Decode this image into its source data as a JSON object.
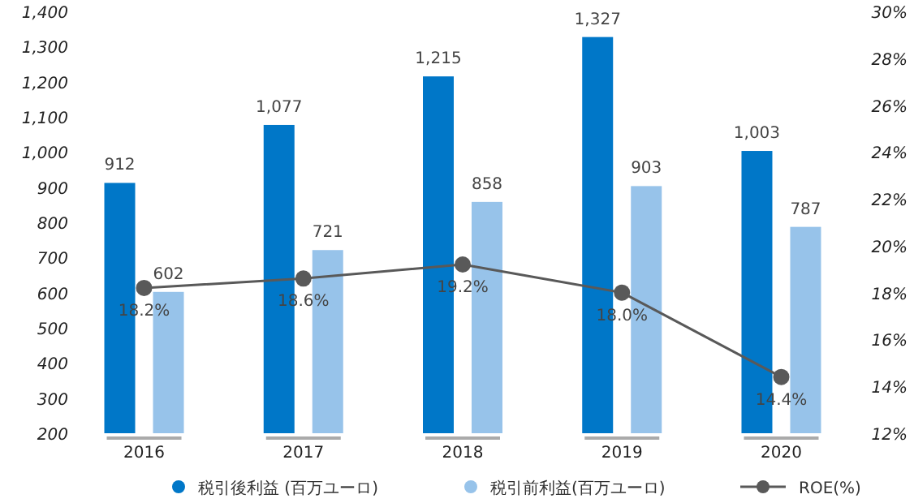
{
  "chart_data": {
    "type": "bar",
    "categories": [
      "2016",
      "2017",
      "2018",
      "2019",
      "2020"
    ],
    "series": [
      {
        "name": "税引後利益 (百万ユーロ)",
        "color": "#0077c8",
        "values": [
          912,
          1077,
          1215,
          1327,
          1003
        ],
        "value_labels": [
          "912",
          "1,077",
          "1,215",
          "1,327",
          "1,003"
        ]
      },
      {
        "name": "税引前利益(百万ユーロ)",
        "color": "#97c3ea",
        "values": [
          602,
          721,
          858,
          903,
          787
        ],
        "value_labels": [
          "602",
          "721",
          "858",
          "903",
          "787"
        ]
      },
      {
        "name": "ROE(%)",
        "type": "line",
        "axis": "y2",
        "color": "#595959",
        "marker": "circle",
        "values": [
          18.2,
          18.6,
          19.2,
          18.0,
          14.4
        ],
        "value_labels": [
          "18.2%",
          "18.6%",
          "19.2%",
          "18.0%",
          "14.4%"
        ]
      }
    ],
    "ylim": [
      200,
      1400
    ],
    "yticks": [
      {
        "value": 200,
        "label": "200"
      },
      {
        "value": 300,
        "label": "300"
      },
      {
        "value": 400,
        "label": "400"
      },
      {
        "value": 500,
        "label": "500"
      },
      {
        "value": 600,
        "label": "600"
      },
      {
        "value": 700,
        "label": "700"
      },
      {
        "value": 800,
        "label": "800"
      },
      {
        "value": 900,
        "label": "900"
      },
      {
        "value": 1000,
        "label": "1,000"
      },
      {
        "value": 1100,
        "label": "1,100"
      },
      {
        "value": 1200,
        "label": "1,200"
      },
      {
        "value": 1300,
        "label": "1,300"
      },
      {
        "value": 1400,
        "label": "1,400"
      }
    ],
    "y2lim": [
      12,
      30
    ],
    "y2ticks": [
      {
        "value": 12,
        "label": "12%"
      },
      {
        "value": 14,
        "label": "14%"
      },
      {
        "value": 16,
        "label": "16%"
      },
      {
        "value": 18,
        "label": "18%"
      },
      {
        "value": 20,
        "label": "20%"
      },
      {
        "value": 22,
        "label": "22%"
      },
      {
        "value": 24,
        "label": "24%"
      },
      {
        "value": 26,
        "label": "26%"
      },
      {
        "value": 28,
        "label": "28%"
      },
      {
        "value": 30,
        "label": "30%"
      }
    ],
    "grid": false,
    "legend": "bottom"
  }
}
